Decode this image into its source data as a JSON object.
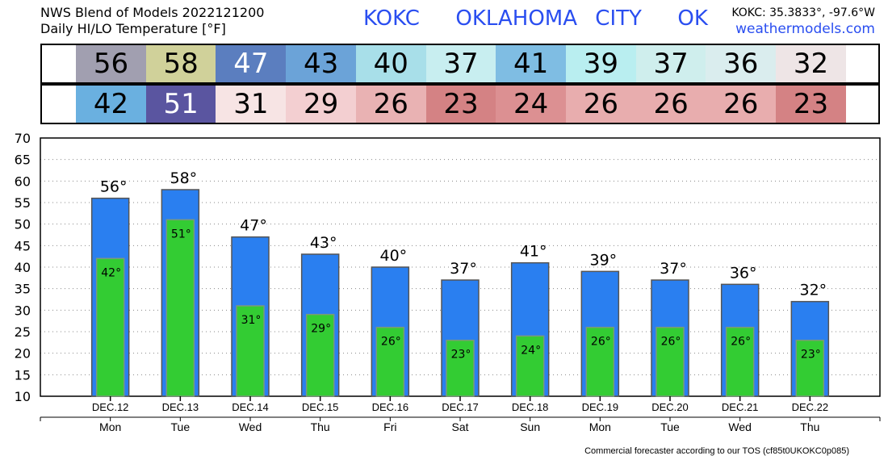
{
  "header": {
    "line1": "NWS Blend of Models 2022121200",
    "line2": "Daily HI/LO Temperature [°F]",
    "station": "KOKC",
    "city": "OKLAHOMA CITY",
    "state": "OK",
    "coords": "KOKC: 35.3833°, -97.6°W",
    "site": "weathermodels.com"
  },
  "strips": {
    "hi": [
      {
        "value": "56",
        "bg": "#a19fb0",
        "fg": "#000000"
      },
      {
        "value": "58",
        "bg": "#d0d19a",
        "fg": "#000000"
      },
      {
        "value": "47",
        "bg": "#5b7ebf",
        "fg": "#ffffff"
      },
      {
        "value": "43",
        "bg": "#6ba3d8",
        "fg": "#000000"
      },
      {
        "value": "40",
        "bg": "#a8dfe9",
        "fg": "#000000"
      },
      {
        "value": "37",
        "bg": "#c8eef0",
        "fg": "#000000"
      },
      {
        "value": "41",
        "bg": "#7fbde3",
        "fg": "#000000"
      },
      {
        "value": "39",
        "bg": "#b9eef0",
        "fg": "#000000"
      },
      {
        "value": "37",
        "bg": "#cfeeed",
        "fg": "#000000"
      },
      {
        "value": "36",
        "bg": "#daedee",
        "fg": "#000000"
      },
      {
        "value": "32",
        "bg": "#eee5e6",
        "fg": "#000000"
      }
    ],
    "lo": [
      {
        "value": "42",
        "bg": "#6ab0e0",
        "fg": "#000000"
      },
      {
        "value": "51",
        "bg": "#5a55a0",
        "fg": "#ffffff"
      },
      {
        "value": "31",
        "bg": "#f7e4e4",
        "fg": "#000000"
      },
      {
        "value": "29",
        "bg": "#f3cfd1",
        "fg": "#000000"
      },
      {
        "value": "26",
        "bg": "#e9b2b3",
        "fg": "#000000"
      },
      {
        "value": "23",
        "bg": "#d48284",
        "fg": "#000000"
      },
      {
        "value": "24",
        "bg": "#dc9092",
        "fg": "#000000"
      },
      {
        "value": "26",
        "bg": "#e8adae",
        "fg": "#000000"
      },
      {
        "value": "26",
        "bg": "#e8adae",
        "fg": "#000000"
      },
      {
        "value": "26",
        "bg": "#e8adae",
        "fg": "#000000"
      },
      {
        "value": "23",
        "bg": "#d48284",
        "fg": "#000000"
      }
    ]
  },
  "chart_data": {
    "type": "bar",
    "categories": [
      "DEC.12",
      "DEC.13",
      "DEC.14",
      "DEC.15",
      "DEC.16",
      "DEC.17",
      "DEC.18",
      "DEC.19",
      "DEC.20",
      "DEC.21",
      "DEC.22"
    ],
    "weekdays": [
      "Mon",
      "Tue",
      "Wed",
      "Thu",
      "Fri",
      "Sat",
      "Sun",
      "Mon",
      "Tue",
      "Wed",
      "Thu"
    ],
    "series": [
      {
        "values": [
          56,
          58,
          47,
          43,
          40,
          37,
          41,
          39,
          37,
          36,
          32
        ],
        "color": "#2a7ff0"
      },
      {
        "values": [
          42,
          51,
          31,
          29,
          26,
          23,
          24,
          26,
          26,
          26,
          23
        ],
        "color": "#33cc33"
      }
    ],
    "ylim": [
      10,
      70
    ],
    "yticks": [
      10,
      15,
      20,
      25,
      30,
      35,
      40,
      45,
      50,
      55,
      60,
      65,
      70
    ],
    "grid": true,
    "degree_symbol": "°"
  },
  "footer": "Commercial forecaster according to our TOS (cf85t0UKOKC0p085)"
}
